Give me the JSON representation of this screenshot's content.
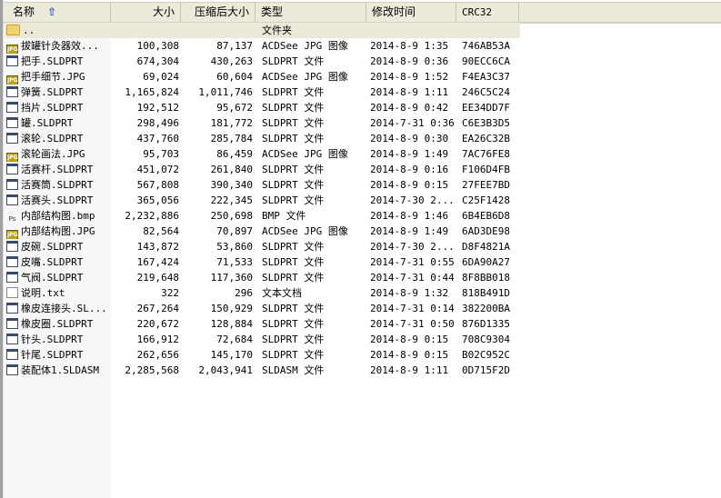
{
  "columns": {
    "name": "名称",
    "size": "大小",
    "packed": "压缩后大小",
    "type": "类型",
    "modified": "修改时间",
    "crc": "CRC32"
  },
  "sort": {
    "column": "name",
    "direction": "ascending",
    "icon": "sort-up-arrow-icon"
  },
  "parent_row": {
    "name": "..",
    "type": "文件夹",
    "icon": "folder-icon"
  },
  "files": [
    {
      "name": "拔罐针灸器效...",
      "size": "100,308",
      "packed": "87,137",
      "type": "ACDSee JPG 图像",
      "modified": "2014-8-9 1:35",
      "crc": "746AB53A",
      "icon": "jpg"
    },
    {
      "name": "把手.SLDPRT",
      "size": "674,304",
      "packed": "430,263",
      "type": "SLDPRT 文件",
      "modified": "2014-8-9 0:36",
      "crc": "90ECC6CA",
      "icon": "sld"
    },
    {
      "name": "把手细节.JPG",
      "size": "69,024",
      "packed": "60,604",
      "type": "ACDSee JPG 图像",
      "modified": "2014-8-9 1:52",
      "crc": "F4EA3C37",
      "icon": "jpg"
    },
    {
      "name": "弹簧.SLDPRT",
      "size": "1,165,824",
      "packed": "1,011,746",
      "type": "SLDPRT 文件",
      "modified": "2014-8-9 1:11",
      "crc": "246C5C24",
      "icon": "sld"
    },
    {
      "name": "挡片.SLDPRT",
      "size": "192,512",
      "packed": "95,672",
      "type": "SLDPRT 文件",
      "modified": "2014-8-9 0:42",
      "crc": "EE34DD7F",
      "icon": "sld"
    },
    {
      "name": "罐.SLDPRT",
      "size": "298,496",
      "packed": "181,772",
      "type": "SLDPRT 文件",
      "modified": "2014-7-31 0:36",
      "crc": "C6E3B3D5",
      "icon": "sld"
    },
    {
      "name": "滚轮.SLDPRT",
      "size": "437,760",
      "packed": "285,784",
      "type": "SLDPRT 文件",
      "modified": "2014-8-9 0:30",
      "crc": "EA26C32B",
      "icon": "sld"
    },
    {
      "name": "滚轮画法.JPG",
      "size": "95,703",
      "packed": "86,459",
      "type": "ACDSee JPG 图像",
      "modified": "2014-8-9 1:49",
      "crc": "7AC76FE8",
      "icon": "jpg"
    },
    {
      "name": "活赛杆.SLDPRT",
      "size": "451,072",
      "packed": "261,840",
      "type": "SLDPRT 文件",
      "modified": "2014-8-9 0:16",
      "crc": "F106D4FB",
      "icon": "sld"
    },
    {
      "name": "活赛筒.SLDPRT",
      "size": "567,808",
      "packed": "390,340",
      "type": "SLDPRT 文件",
      "modified": "2014-8-9 0:15",
      "crc": "27FEE7BD",
      "icon": "sld"
    },
    {
      "name": "活赛头.SLDPRT",
      "size": "365,056",
      "packed": "222,345",
      "type": "SLDPRT 文件",
      "modified": "2014-7-30 2...",
      "crc": "C25F1428",
      "icon": "sld"
    },
    {
      "name": "内部结构图.bmp",
      "size": "2,232,886",
      "packed": "250,698",
      "type": "BMP 文件",
      "modified": "2014-8-9 1:46",
      "crc": "6B4EB6D8",
      "icon": "bmp"
    },
    {
      "name": "内部结构图.JPG",
      "size": "82,564",
      "packed": "70,897",
      "type": "ACDSee JPG 图像",
      "modified": "2014-8-9 1:49",
      "crc": "6AD3DE98",
      "icon": "jpg"
    },
    {
      "name": "皮碗.SLDPRT",
      "size": "143,872",
      "packed": "53,860",
      "type": "SLDPRT 文件",
      "modified": "2014-7-30 2...",
      "crc": "D8F4821A",
      "icon": "sld"
    },
    {
      "name": "皮嘴.SLDPRT",
      "size": "167,424",
      "packed": "71,533",
      "type": "SLDPRT 文件",
      "modified": "2014-7-31 0:55",
      "crc": "6DA90A27",
      "icon": "sld"
    },
    {
      "name": "气阀.SLDPRT",
      "size": "219,648",
      "packed": "117,360",
      "type": "SLDPRT 文件",
      "modified": "2014-7-31 0:44",
      "crc": "8F8BB018",
      "icon": "sld"
    },
    {
      "name": "说明.txt",
      "size": "322",
      "packed": "296",
      "type": "文本文档",
      "modified": "2014-8-9 1:32",
      "crc": "818B491D",
      "icon": "txt"
    },
    {
      "name": "橡皮连接头.SL...",
      "size": "267,264",
      "packed": "150,929",
      "type": "SLDPRT 文件",
      "modified": "2014-7-31 0:14",
      "crc": "382200BA",
      "icon": "sld"
    },
    {
      "name": "橡皮圈.SLDPRT",
      "size": "220,672",
      "packed": "128,884",
      "type": "SLDPRT 文件",
      "modified": "2014-7-31 0:50",
      "crc": "876D1335",
      "icon": "sld"
    },
    {
      "name": "针头.SLDPRT",
      "size": "166,912",
      "packed": "72,684",
      "type": "SLDPRT 文件",
      "modified": "2014-8-9 0:15",
      "crc": "708C9304",
      "icon": "sld"
    },
    {
      "name": "针尾.SLDPRT",
      "size": "262,656",
      "packed": "145,170",
      "type": "SLDPRT 文件",
      "modified": "2014-8-9 0:15",
      "crc": "B02C952C",
      "icon": "sld"
    },
    {
      "name": "装配体1.SLDASM",
      "size": "2,285,568",
      "packed": "2,043,941",
      "type": "SLDASM 文件",
      "modified": "2014-8-9 1:11",
      "crc": "0D715F2D",
      "icon": "sld"
    }
  ]
}
